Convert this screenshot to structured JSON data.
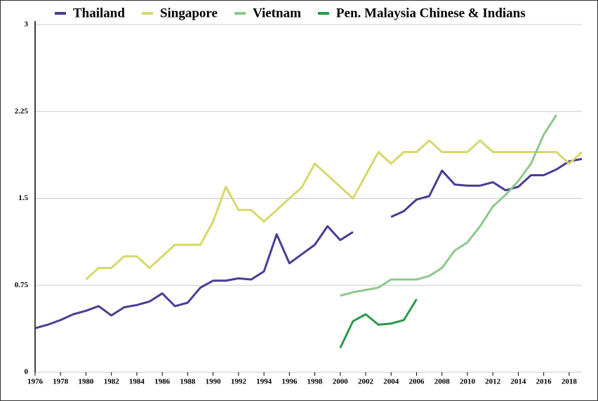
{
  "chart_data": {
    "type": "line",
    "x": [
      1976,
      1977,
      1978,
      1979,
      1980,
      1981,
      1982,
      1983,
      1984,
      1985,
      1986,
      1987,
      1988,
      1989,
      1990,
      1991,
      1992,
      1993,
      1994,
      1995,
      1996,
      1997,
      1998,
      1999,
      2000,
      2001,
      2002,
      2003,
      2004,
      2005,
      2006,
      2007,
      2008,
      2009,
      2010,
      2011,
      2012,
      2013,
      2014,
      2015,
      2016,
      2017,
      2018,
      2019
    ],
    "series": [
      {
        "name": "Thailand",
        "color": "#4b3c96",
        "values": [
          0.38,
          0.41,
          0.45,
          0.5,
          0.53,
          0.57,
          0.49,
          0.56,
          0.58,
          0.61,
          0.68,
          0.57,
          0.6,
          0.73,
          0.79,
          0.79,
          0.81,
          0.8,
          0.87,
          1.19,
          0.94,
          1.02,
          1.1,
          1.26,
          1.14,
          1.21,
          null,
          null,
          1.34,
          1.39,
          1.49,
          1.52,
          1.74,
          1.62,
          1.61,
          1.61,
          1.64,
          1.57,
          1.6,
          1.7,
          1.7,
          1.75,
          1.82,
          1.84
        ]
      },
      {
        "name": "Singapore",
        "color": "#d6d96a",
        "values": [
          null,
          null,
          null,
          null,
          0.8,
          0.9,
          0.9,
          1.0,
          1.0,
          0.9,
          1.0,
          1.1,
          1.1,
          1.1,
          1.3,
          1.6,
          1.4,
          1.4,
          1.3,
          1.4,
          1.5,
          1.6,
          1.8,
          1.7,
          1.6,
          1.5,
          1.7,
          1.9,
          1.8,
          1.9,
          1.9,
          2.0,
          1.9,
          1.9,
          1.9,
          2.0,
          1.9,
          1.9,
          1.9,
          1.9,
          1.9,
          1.9,
          1.8,
          1.9
        ]
      },
      {
        "name": "Vietnam",
        "color": "#8cc88c",
        "values": [
          null,
          null,
          null,
          null,
          null,
          null,
          null,
          null,
          null,
          null,
          null,
          null,
          null,
          null,
          null,
          null,
          null,
          null,
          null,
          null,
          null,
          null,
          null,
          null,
          0.66,
          0.69,
          0.71,
          0.73,
          0.8,
          0.8,
          0.8,
          0.83,
          0.9,
          1.05,
          1.12,
          1.26,
          1.43,
          1.53,
          1.65,
          1.8,
          2.05,
          2.22,
          null,
          null
        ]
      },
      {
        "name": "Pen. Malaysia Chinese & Indians",
        "color": "#2a9a4a",
        "values": [
          null,
          null,
          null,
          null,
          null,
          null,
          null,
          null,
          null,
          null,
          null,
          null,
          null,
          null,
          null,
          null,
          null,
          null,
          null,
          null,
          null,
          null,
          null,
          null,
          0.21,
          0.44,
          0.5,
          0.41,
          0.42,
          0.45,
          0.63,
          null,
          null,
          null,
          null,
          null,
          null,
          null,
          null,
          null,
          null,
          null,
          null,
          null
        ]
      }
    ],
    "xlim": [
      1976,
      2019
    ],
    "xticks": [
      1976,
      1978,
      1980,
      1982,
      1984,
      1986,
      1988,
      1990,
      1992,
      1994,
      1996,
      1998,
      2000,
      2002,
      2004,
      2006,
      2008,
      2010,
      2012,
      2014,
      2016,
      2018
    ],
    "ylim": [
      0,
      3
    ],
    "yticks": [
      0,
      0.75,
      1.5,
      2.25,
      3
    ],
    "grid": true,
    "legend": "top"
  }
}
